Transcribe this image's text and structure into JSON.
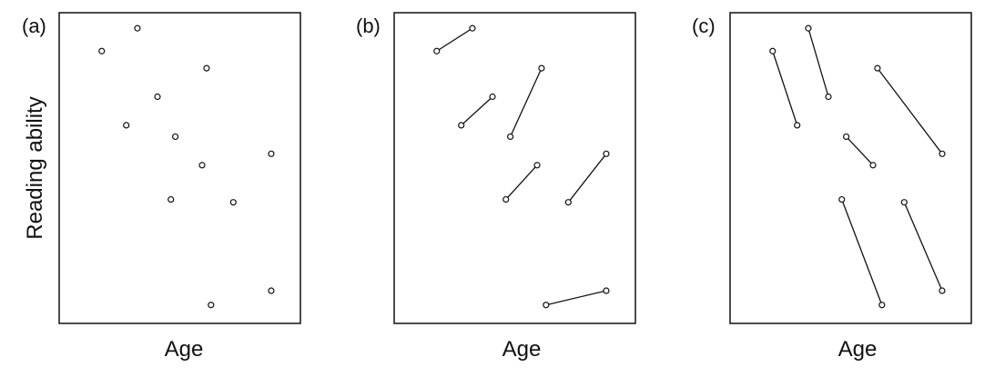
{
  "chart_data": [
    {
      "type": "scatter",
      "panel_label": "(a)",
      "xlabel": "Age",
      "ylabel": "Reading ability",
      "xlim": [
        0,
        100
      ],
      "ylim": [
        0,
        100
      ],
      "grid": false,
      "points": [
        {
          "x": 15,
          "y": 91
        },
        {
          "x": 31,
          "y": 99
        },
        {
          "x": 62,
          "y": 85
        },
        {
          "x": 40,
          "y": 75
        },
        {
          "x": 26,
          "y": 65
        },
        {
          "x": 48,
          "y": 61
        },
        {
          "x": 60,
          "y": 51
        },
        {
          "x": 91,
          "y": 55
        },
        {
          "x": 46,
          "y": 39
        },
        {
          "x": 74,
          "y": 38
        },
        {
          "x": 64,
          "y": 2
        },
        {
          "x": 91,
          "y": 7
        }
      ]
    },
    {
      "type": "line",
      "panel_label": "(b)",
      "xlabel": "Age",
      "xlim": [
        0,
        100
      ],
      "ylim": [
        0,
        100
      ],
      "grid": false,
      "segments": [
        {
          "x": [
            15,
            31
          ],
          "y": [
            91,
            99
          ]
        },
        {
          "x": [
            26,
            40
          ],
          "y": [
            65,
            75
          ]
        },
        {
          "x": [
            48,
            62
          ],
          "y": [
            61,
            85
          ]
        },
        {
          "x": [
            46,
            60
          ],
          "y": [
            39,
            51
          ]
        },
        {
          "x": [
            74,
            91
          ],
          "y": [
            38,
            55
          ]
        },
        {
          "x": [
            64,
            91
          ],
          "y": [
            2,
            7
          ]
        }
      ]
    },
    {
      "type": "line",
      "panel_label": "(c)",
      "xlabel": "Age",
      "xlim": [
        0,
        100
      ],
      "ylim": [
        0,
        100
      ],
      "grid": false,
      "segments": [
        {
          "x": [
            15,
            26
          ],
          "y": [
            91,
            65
          ]
        },
        {
          "x": [
            31,
            40
          ],
          "y": [
            99,
            75
          ]
        },
        {
          "x": [
            62,
            91
          ],
          "y": [
            85,
            55
          ]
        },
        {
          "x": [
            48,
            60
          ],
          "y": [
            61,
            51
          ]
        },
        {
          "x": [
            46,
            64
          ],
          "y": [
            39,
            2
          ]
        },
        {
          "x": [
            74,
            91
          ],
          "y": [
            38,
            7
          ]
        }
      ]
    }
  ]
}
